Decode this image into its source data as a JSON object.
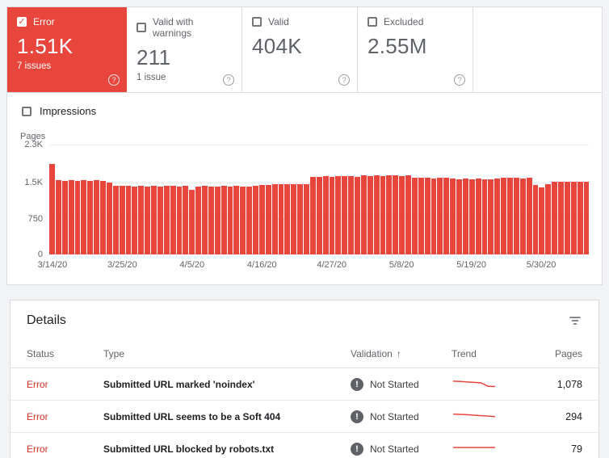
{
  "colors": {
    "red": "#e8453c",
    "error_text": "#d93025",
    "gray": "#5f6368",
    "dark": "#202124"
  },
  "icons": {
    "check": "✓",
    "help": "?",
    "sort_asc": "↑",
    "bang": "!"
  },
  "cards": [
    {
      "label": "Error",
      "value": "1.51K",
      "subtitle": "7 issues",
      "selected": true
    },
    {
      "label": "Valid with warnings",
      "value": "211",
      "subtitle": "1 issue",
      "selected": false
    },
    {
      "label": "Valid",
      "value": "404K",
      "subtitle": "",
      "selected": false
    },
    {
      "label": "Excluded",
      "value": "2.55M",
      "subtitle": "",
      "selected": false
    }
  ],
  "impressions_label": "Impressions",
  "chart_data": {
    "type": "bar",
    "title": "",
    "ylabel": "Pages",
    "ylim": [
      0,
      2300
    ],
    "grid": true,
    "bar_color": "#e8453c",
    "y_ticks": [
      {
        "label": "2.3K",
        "value": 2300
      },
      {
        "label": "1.5K",
        "value": 1500
      },
      {
        "label": "750",
        "value": 750
      },
      {
        "label": "0",
        "value": 0
      }
    ],
    "x_ticks": [
      {
        "label": "3/14/20",
        "index": 0
      },
      {
        "label": "3/25/20",
        "index": 11
      },
      {
        "label": "4/5/20",
        "index": 22
      },
      {
        "label": "4/16/20",
        "index": 33
      },
      {
        "label": "4/27/20",
        "index": 44
      },
      {
        "label": "5/8/20",
        "index": 55
      },
      {
        "label": "5/19/20",
        "index": 66
      },
      {
        "label": "5/30/20",
        "index": 77
      }
    ],
    "values": [
      1900,
      1560,
      1545,
      1555,
      1540,
      1550,
      1545,
      1550,
      1540,
      1500,
      1440,
      1430,
      1435,
      1425,
      1430,
      1420,
      1430,
      1425,
      1435,
      1430,
      1425,
      1430,
      1360,
      1420,
      1430,
      1425,
      1420,
      1430,
      1425,
      1430,
      1420,
      1425,
      1430,
      1450,
      1460,
      1470,
      1465,
      1475,
      1480,
      1470,
      1480,
      1630,
      1620,
      1640,
      1630,
      1645,
      1635,
      1640,
      1630,
      1650,
      1640,
      1655,
      1645,
      1650,
      1660,
      1645,
      1650,
      1610,
      1600,
      1605,
      1595,
      1605,
      1600,
      1595,
      1580,
      1585,
      1575,
      1585,
      1580,
      1575,
      1585,
      1600,
      1610,
      1605,
      1595,
      1600,
      1450,
      1400,
      1480,
      1520,
      1530,
      1525,
      1520,
      1530,
      1525
    ]
  },
  "details": {
    "title": "Details",
    "columns": [
      "Status",
      "Type",
      "Validation",
      "Trend",
      "Pages"
    ],
    "sort_column": "Validation",
    "rows": [
      {
        "status": "Error",
        "type": "Submitted URL marked 'noindex'",
        "validation": "Not Started",
        "pages": "1,078",
        "trend": [
          3.5,
          3.8,
          4.2,
          4.6,
          5.0,
          8.0,
          8.2
        ]
      },
      {
        "status": "Error",
        "type": "Submitted URL seems to be a Soft 404",
        "validation": "Not Started",
        "pages": "294",
        "trend": [
          4.0,
          4.3,
          4.6,
          5.0,
          5.4,
          5.8,
          6.2
        ]
      },
      {
        "status": "Error",
        "type": "Submitted URL blocked by robots.txt",
        "validation": "Not Started",
        "pages": "79",
        "trend": [
          5.0,
          5.0,
          5.0,
          5.0,
          5.0,
          5.0,
          5.0
        ]
      }
    ]
  }
}
